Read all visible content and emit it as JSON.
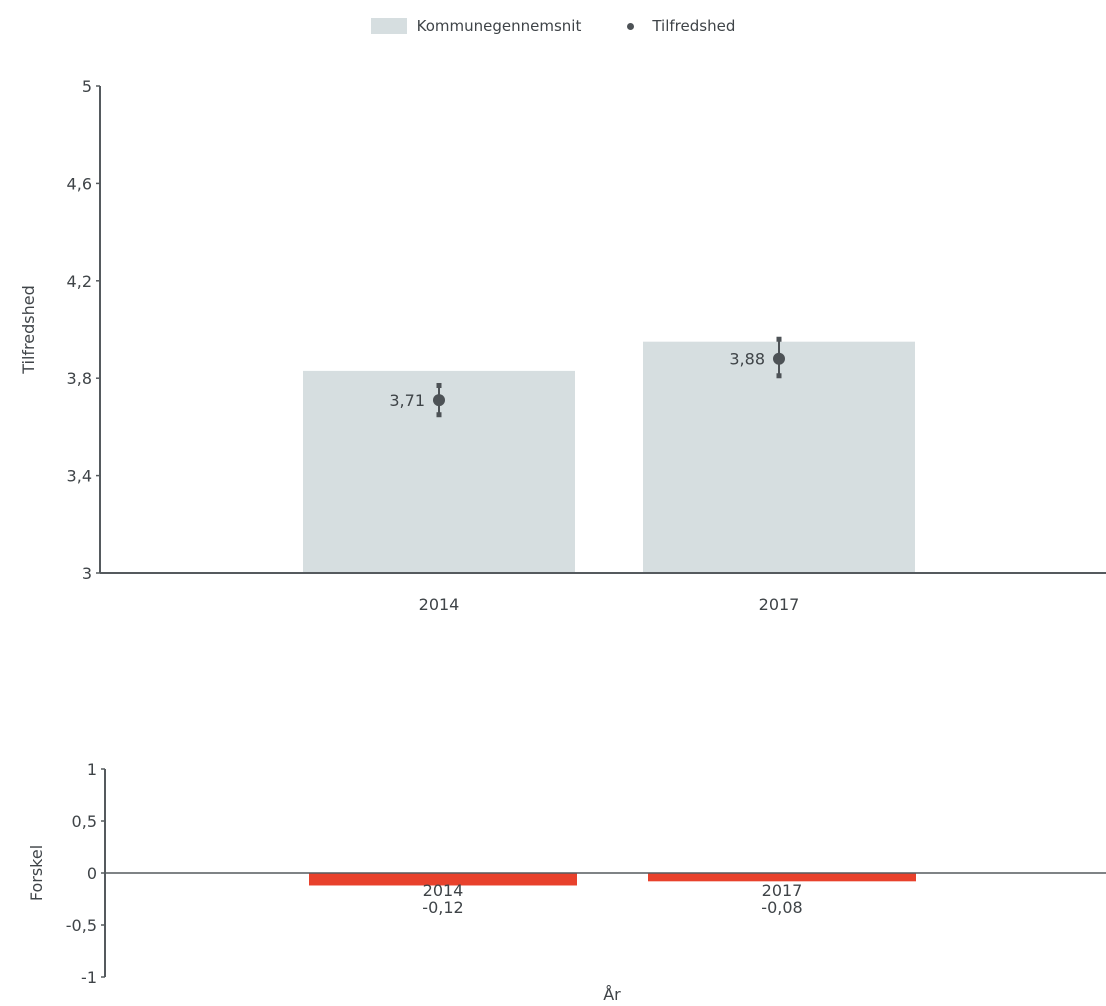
{
  "legend": {
    "bar_label": "Kommunegennemsnit",
    "point_label": "Tilfredshed"
  },
  "colors": {
    "bar": "#d6dee0",
    "point": "#4d5256",
    "difference": "#e8412c",
    "axis": "#555a5e",
    "text": "#3f4448"
  },
  "chart_data": [
    {
      "type": "bar",
      "ylabel": "Tilfredshed",
      "xlabel": "",
      "categories": [
        "2014",
        "2017"
      ],
      "ylim": [
        3,
        5
      ],
      "yticks": [
        3,
        3.4,
        3.8,
        4.2,
        4.6,
        5
      ],
      "ytick_labels": [
        "3",
        "3,4",
        "3,8",
        "4,2",
        "4,6",
        "5"
      ],
      "grid": false,
      "legend_position": "top-center",
      "series": [
        {
          "name": "Kommunegennemsnit",
          "type": "bar",
          "values": [
            3.83,
            3.95
          ]
        },
        {
          "name": "Tilfredshed",
          "type": "scatter",
          "values": [
            3.71,
            3.88
          ],
          "value_labels": [
            "3,71",
            "3,88"
          ],
          "error_low": [
            3.65,
            3.81
          ],
          "error_high": [
            3.77,
            3.96
          ]
        }
      ]
    },
    {
      "type": "bar",
      "ylabel": "Forskel",
      "xlabel": "År",
      "categories": [
        "2014",
        "2017"
      ],
      "ylim": [
        -1,
        1
      ],
      "yticks": [
        -1,
        -0.5,
        0,
        0.5,
        1
      ],
      "ytick_labels": [
        "-1",
        "-0,5",
        "0",
        "0,5",
        "1"
      ],
      "grid": false,
      "series": [
        {
          "values": [
            -0.12,
            -0.08
          ],
          "value_labels": [
            "-0,12",
            "-0,08"
          ]
        }
      ]
    }
  ]
}
